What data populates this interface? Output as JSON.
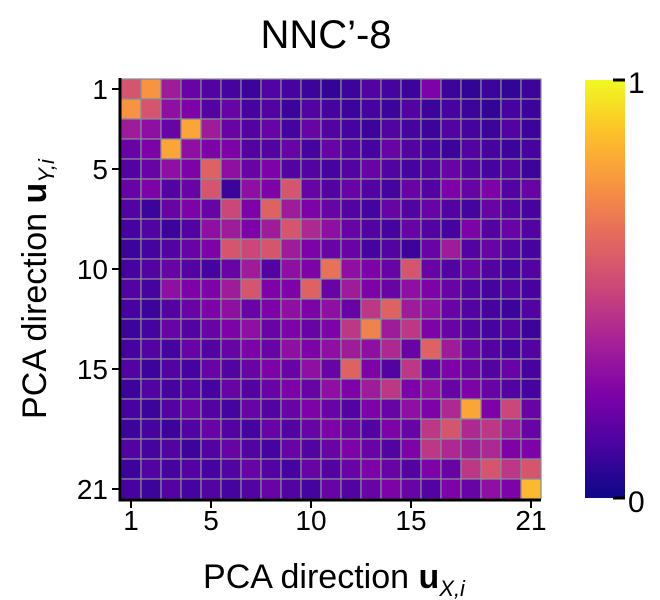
{
  "chart_data": {
    "type": "heatmap",
    "title": "NNC’-8",
    "xlabel": {
      "prefix": "PCA direction ",
      "bold": "u",
      "sub": "X,i"
    },
    "ylabel": {
      "prefix": "PCA direction ",
      "bold": "u",
      "sub": "Y,i"
    },
    "n": 21,
    "x_ticks": [
      1,
      5,
      10,
      15,
      21
    ],
    "y_ticks": [
      1,
      5,
      10,
      15,
      21
    ],
    "colorbar": {
      "min": 0,
      "max": 1,
      "min_label": "0",
      "max_label": "1",
      "colormap": "plasma"
    },
    "grid": true,
    "values": [
      [
        0.55,
        0.75,
        0.35,
        0.2,
        0.15,
        0.12,
        0.1,
        0.15,
        0.12,
        0.1,
        0.08,
        0.1,
        0.15,
        0.12,
        0.1,
        0.25,
        0.1,
        0.08,
        0.1,
        0.08,
        0.1
      ],
      [
        0.75,
        0.55,
        0.3,
        0.25,
        0.15,
        0.2,
        0.12,
        0.15,
        0.1,
        0.15,
        0.12,
        0.1,
        0.12,
        0.1,
        0.15,
        0.1,
        0.12,
        0.1,
        0.08,
        0.12,
        0.1
      ],
      [
        0.35,
        0.3,
        0.2,
        0.8,
        0.35,
        0.2,
        0.15,
        0.2,
        0.12,
        0.2,
        0.15,
        0.12,
        0.1,
        0.15,
        0.12,
        0.1,
        0.15,
        0.12,
        0.1,
        0.15,
        0.1
      ],
      [
        0.2,
        0.25,
        0.8,
        0.3,
        0.25,
        0.25,
        0.15,
        0.15,
        0.2,
        0.12,
        0.2,
        0.15,
        0.12,
        0.2,
        0.15,
        0.12,
        0.1,
        0.15,
        0.12,
        0.1,
        0.12
      ],
      [
        0.15,
        0.2,
        0.3,
        0.25,
        0.6,
        0.3,
        0.2,
        0.25,
        0.15,
        0.15,
        0.12,
        0.15,
        0.2,
        0.15,
        0.12,
        0.15,
        0.2,
        0.15,
        0.12,
        0.15,
        0.1
      ],
      [
        0.2,
        0.25,
        0.15,
        0.2,
        0.55,
        0.1,
        0.3,
        0.25,
        0.55,
        0.2,
        0.15,
        0.2,
        0.15,
        0.12,
        0.2,
        0.15,
        0.25,
        0.2,
        0.25,
        0.15,
        0.2
      ],
      [
        0.15,
        0.1,
        0.2,
        0.25,
        0.2,
        0.5,
        0.25,
        0.6,
        0.35,
        0.25,
        0.2,
        0.15,
        0.12,
        0.2,
        0.15,
        0.2,
        0.15,
        0.12,
        0.2,
        0.15,
        0.12
      ],
      [
        0.12,
        0.15,
        0.1,
        0.15,
        0.3,
        0.35,
        0.25,
        0.35,
        0.55,
        0.4,
        0.3,
        0.2,
        0.15,
        0.12,
        0.2,
        0.15,
        0.12,
        0.25,
        0.15,
        0.2,
        0.15
      ],
      [
        0.1,
        0.12,
        0.15,
        0.2,
        0.25,
        0.55,
        0.5,
        0.55,
        0.35,
        0.25,
        0.2,
        0.2,
        0.12,
        0.15,
        0.1,
        0.2,
        0.35,
        0.15,
        0.2,
        0.15,
        0.12
      ],
      [
        0.12,
        0.15,
        0.2,
        0.15,
        0.12,
        0.2,
        0.35,
        0.15,
        0.3,
        0.25,
        0.65,
        0.3,
        0.25,
        0.2,
        0.55,
        0.2,
        0.15,
        0.2,
        0.15,
        0.12,
        0.15
      ],
      [
        0.15,
        0.12,
        0.3,
        0.25,
        0.25,
        0.35,
        0.55,
        0.25,
        0.25,
        0.6,
        0.2,
        0.35,
        0.25,
        0.2,
        0.3,
        0.25,
        0.2,
        0.15,
        0.12,
        0.15,
        0.12
      ],
      [
        0.12,
        0.1,
        0.15,
        0.2,
        0.25,
        0.3,
        0.2,
        0.25,
        0.3,
        0.25,
        0.3,
        0.2,
        0.45,
        0.6,
        0.35,
        0.3,
        0.2,
        0.15,
        0.12,
        0.1,
        0.15
      ],
      [
        0.1,
        0.12,
        0.2,
        0.15,
        0.2,
        0.25,
        0.3,
        0.2,
        0.25,
        0.2,
        0.25,
        0.45,
        0.7,
        0.35,
        0.45,
        0.25,
        0.2,
        0.15,
        0.12,
        0.15,
        0.1
      ],
      [
        0.12,
        0.15,
        0.12,
        0.2,
        0.15,
        0.2,
        0.25,
        0.2,
        0.3,
        0.25,
        0.3,
        0.35,
        0.3,
        0.4,
        0.2,
        0.6,
        0.35,
        0.2,
        0.15,
        0.12,
        0.15
      ],
      [
        0.15,
        0.1,
        0.15,
        0.12,
        0.2,
        0.15,
        0.2,
        0.25,
        0.2,
        0.3,
        0.2,
        0.6,
        0.25,
        0.15,
        0.45,
        0.2,
        0.25,
        0.2,
        0.15,
        0.2,
        0.12
      ],
      [
        0.1,
        0.15,
        0.12,
        0.15,
        0.12,
        0.2,
        0.15,
        0.2,
        0.25,
        0.2,
        0.3,
        0.25,
        0.35,
        0.45,
        0.25,
        0.3,
        0.2,
        0.25,
        0.2,
        0.15,
        0.12
      ],
      [
        0.12,
        0.1,
        0.15,
        0.2,
        0.15,
        0.12,
        0.2,
        0.15,
        0.2,
        0.25,
        0.2,
        0.15,
        0.25,
        0.2,
        0.3,
        0.25,
        0.4,
        0.8,
        0.25,
        0.5,
        0.2
      ],
      [
        0.1,
        0.12,
        0.1,
        0.15,
        0.2,
        0.15,
        0.12,
        0.2,
        0.15,
        0.2,
        0.25,
        0.2,
        0.15,
        0.25,
        0.2,
        0.45,
        0.55,
        0.4,
        0.45,
        0.35,
        0.2
      ],
      [
        0.15,
        0.12,
        0.15,
        0.1,
        0.15,
        0.2,
        0.15,
        0.12,
        0.2,
        0.15,
        0.2,
        0.25,
        0.2,
        0.15,
        0.25,
        0.45,
        0.4,
        0.35,
        0.4,
        0.25,
        0.25
      ],
      [
        0.1,
        0.15,
        0.12,
        0.15,
        0.12,
        0.15,
        0.2,
        0.15,
        0.12,
        0.2,
        0.15,
        0.2,
        0.25,
        0.2,
        0.15,
        0.25,
        0.2,
        0.45,
        0.55,
        0.45,
        0.55
      ],
      [
        0.12,
        0.1,
        0.15,
        0.12,
        0.15,
        0.12,
        0.15,
        0.2,
        0.15,
        0.12,
        0.2,
        0.15,
        0.2,
        0.25,
        0.2,
        0.15,
        0.25,
        0.2,
        0.3,
        0.25,
        0.85
      ]
    ]
  }
}
